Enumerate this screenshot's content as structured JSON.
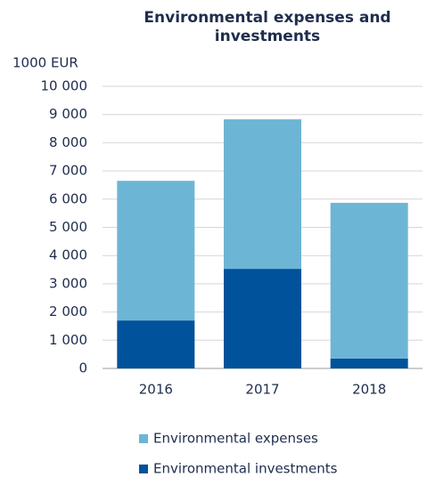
{
  "chart_data": {
    "type": "stacked-bar",
    "title": "Environmental expenses and investments",
    "y_label": "1000 EUR",
    "categories": [
      "2016",
      "2017",
      "2018"
    ],
    "series": [
      {
        "name": "Environmental expenses",
        "color": "#6db5d5",
        "values": [
          4950,
          5300,
          5520
        ]
      },
      {
        "name": "Environmental investments",
        "color": "#00529b",
        "values": [
          1700,
          3530,
          350
        ]
      }
    ],
    "ylim": [
      0,
      10000
    ],
    "yticks": [
      0,
      {
        "value": 1000,
        "label": "1 000"
      },
      {
        "value": 2000,
        "label": "2 000"
      },
      {
        "value": 3000,
        "label": "3 000"
      },
      {
        "value": 4000,
        "label": "4 000"
      },
      {
        "value": 5000,
        "label": "5 000"
      },
      {
        "value": 6000,
        "label": "6 000"
      },
      {
        "value": 7000,
        "label": "7 000"
      },
      {
        "value": 8000,
        "label": "8 000"
      },
      {
        "value": 9000,
        "label": "9 000"
      },
      {
        "value": 10000,
        "label": "10 000"
      }
    ],
    "grid": true,
    "legend": "bottom"
  }
}
